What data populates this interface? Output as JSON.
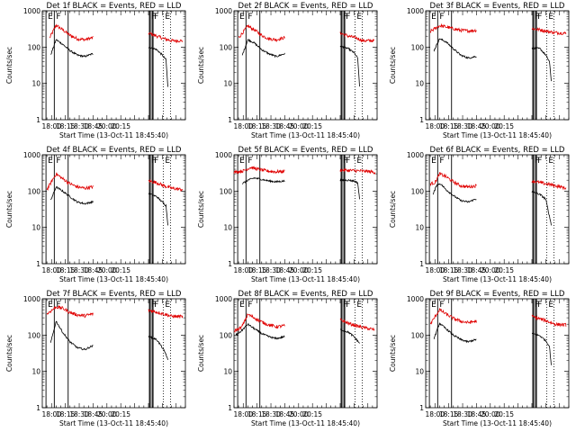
{
  "chart_data": {
    "type": "line",
    "layout": "3x3 grid of panels",
    "shared": {
      "xlabel": "Start Time (13-Oct-11 18:45:40)",
      "ylabel": "Counts/sec",
      "x_ticks": [
        "18:00",
        "18:15",
        "18:30",
        "18:45",
        "20:00",
        "20:15"
      ],
      "xlim": [
        "17:50",
        "20:25"
      ],
      "y_scale": "log",
      "ylim": [
        1,
        1000
      ],
      "y_ticks": [
        "1",
        "10",
        "100",
        "1000"
      ],
      "grid": false,
      "markers": [
        {
          "label": "E",
          "time": "17:54",
          "style": "solid"
        },
        {
          "label": "F",
          "time": "18:03",
          "style": "solid"
        },
        {
          "label": "",
          "time": "18:18",
          "style": "solid"
        },
        {
          "label": "F",
          "time": "19:46",
          "style": "solid"
        },
        {
          "label": "",
          "time": "19:47",
          "style": "solid"
        },
        {
          "label": "F",
          "time": "19:49",
          "style": "solid"
        },
        {
          "label": "",
          "time": "19:50",
          "style": "solid"
        },
        {
          "label": "E",
          "time": "20:01",
          "style": "dotted"
        },
        {
          "label": "",
          "time": "20:09",
          "style": "dotted"
        }
      ],
      "series_colors": {
        "events": "#000000",
        "lld": "#e00000"
      }
    },
    "panels": [
      {
        "title": "Det 1f BLACK = Events, RED = LLD",
        "series": [
          {
            "color": "#e00000",
            "x": [
              "17:58",
              "18:05",
              "18:12",
              "18:20",
              "18:28",
              "18:36",
              "18:44",
              "19:46",
              "19:54",
              "20:02",
              "20:10",
              "20:22"
            ],
            "y": [
              180,
              400,
              300,
              210,
              170,
              160,
              180,
              240,
              200,
              170,
              150,
              150
            ]
          },
          {
            "color": "#000000",
            "x": [
              "17:59",
              "18:05",
              "18:12",
              "18:20",
              "18:28",
              "18:36",
              "18:44",
              "19:46",
              "19:54",
              "20:00",
              "20:04",
              "20:06"
            ],
            "y": [
              60,
              160,
              120,
              80,
              60,
              55,
              65,
              100,
              85,
              60,
              45,
              8
            ]
          }
        ]
      },
      {
        "title": "Det 2f BLACK = Events, RED = LLD",
        "series": [
          {
            "color": "#e00000",
            "x": [
              "17:55",
              "18:05",
              "18:12",
              "18:20",
              "18:28",
              "18:36",
              "18:44",
              "19:46",
              "19:54",
              "20:02",
              "20:10",
              "20:22"
            ],
            "y": [
              180,
              380,
              300,
              210,
              170,
              160,
              180,
              240,
              200,
              180,
              150,
              150
            ]
          },
          {
            "color": "#000000",
            "x": [
              "17:59",
              "18:05",
              "18:12",
              "18:20",
              "18:28",
              "18:36",
              "18:44",
              "19:46",
              "19:54",
              "20:00",
              "20:04",
              "20:06"
            ],
            "y": [
              60,
              160,
              130,
              85,
              65,
              55,
              65,
              105,
              90,
              70,
              50,
              8
            ]
          }
        ]
      },
      {
        "title": "Det 3f BLACK = Events, RED = LLD",
        "series": [
          {
            "color": "#e00000",
            "x": [
              "17:55",
              "18:05",
              "18:12",
              "18:20",
              "18:28",
              "18:36",
              "18:44",
              "19:46",
              "19:54",
              "20:02",
              "20:10",
              "20:22"
            ],
            "y": [
              270,
              390,
              360,
              320,
              290,
              280,
              290,
              320,
              300,
              270,
              250,
              240
            ]
          },
          {
            "color": "#000000",
            "x": [
              "17:59",
              "18:05",
              "18:12",
              "18:20",
              "18:28",
              "18:36",
              "18:44",
              "19:46",
              "19:54",
              "20:00",
              "20:04",
              "20:06"
            ],
            "y": [
              80,
              170,
              140,
              90,
              60,
              50,
              55,
              95,
              90,
              60,
              40,
              12
            ]
          }
        ]
      },
      {
        "title": "Det 4f BLACK = Events, RED = LLD",
        "series": [
          {
            "color": "#e00000",
            "x": [
              "17:55",
              "18:05",
              "18:12",
              "18:20",
              "18:28",
              "18:36",
              "18:44",
              "19:46",
              "19:54",
              "20:02",
              "20:10",
              "20:22"
            ],
            "y": [
              110,
              300,
              220,
              160,
              130,
              120,
              130,
              190,
              170,
              140,
              120,
              110
            ]
          },
          {
            "color": "#000000",
            "x": [
              "17:59",
              "18:05",
              "18:12",
              "18:20",
              "18:28",
              "18:36",
              "18:44",
              "19:46",
              "19:54",
              "20:00",
              "20:04",
              "20:06"
            ],
            "y": [
              55,
              130,
              100,
              70,
              50,
              45,
              50,
              85,
              70,
              50,
              40,
              12
            ]
          }
        ]
      },
      {
        "title": "Det 5f BLACK = Events, RED = LLD",
        "series": [
          {
            "color": "#e00000",
            "x": [
              "17:50",
              "18:00",
              "18:08",
              "18:16",
              "18:25",
              "18:35",
              "18:44",
              "19:46",
              "19:56",
              "20:06",
              "20:15",
              "20:23"
            ],
            "y": [
              330,
              360,
              450,
              400,
              360,
              340,
              350,
              380,
              370,
              360,
              350,
              330
            ]
          },
          {
            "color": "#000000",
            "x": [
              "17:59",
              "18:05",
              "18:12",
              "18:20",
              "18:28",
              "18:36",
              "18:44",
              "19:46",
              "19:54",
              "20:00",
              "20:04",
              "20:06"
            ],
            "y": [
              160,
              200,
              230,
              210,
              190,
              180,
              190,
              200,
              200,
              190,
              170,
              60
            ]
          }
        ]
      },
      {
        "title": "Det 6f BLACK = Events, RED = LLD",
        "series": [
          {
            "color": "#e00000",
            "x": [
              "17:55",
              "18:00",
              "18:05",
              "18:12",
              "18:20",
              "18:28",
              "18:36",
              "18:44",
              "19:46",
              "19:54",
              "20:06",
              "20:22"
            ],
            "y": [
              160,
              170,
              300,
              250,
              180,
              140,
              130,
              140,
              190,
              170,
              150,
              120
            ]
          },
          {
            "color": "#000000",
            "x": [
              "17:58",
              "18:02",
              "18:06",
              "18:12",
              "18:20",
              "18:28",
              "18:36",
              "18:44",
              "19:46",
              "19:54",
              "20:00",
              "20:06"
            ],
            "y": [
              80,
              150,
              160,
              110,
              75,
              55,
              50,
              60,
              95,
              80,
              60,
              12
            ]
          }
        ]
      },
      {
        "title": "Det 7f BLACK = Events, RED = LLD",
        "series": [
          {
            "color": "#e00000",
            "x": [
              "17:55",
              "18:05",
              "18:12",
              "18:20",
              "18:28",
              "18:36",
              "18:44",
              "19:46",
              "19:54",
              "20:02",
              "20:10",
              "20:22"
            ],
            "y": [
              380,
              600,
              550,
              420,
              360,
              340,
              380,
              480,
              430,
              380,
              330,
              320
            ]
          },
          {
            "color": "#000000",
            "x": [
              "17:59",
              "18:05",
              "18:12",
              "18:20",
              "18:28",
              "18:36",
              "18:44",
              "19:46",
              "19:54",
              "20:00",
              "20:04",
              "20:06"
            ],
            "y": [
              60,
              240,
              120,
              65,
              45,
              40,
              50,
              90,
              75,
              45,
              30,
              20
            ]
          }
        ]
      },
      {
        "title": "Det 8f BLACK = Events, RED = LLD",
        "series": [
          {
            "color": "#e00000",
            "x": [
              "17:50",
              "17:58",
              "18:05",
              "18:12",
              "18:20",
              "18:28",
              "18:36",
              "18:44",
              "19:46",
              "19:54",
              "20:06",
              "20:22"
            ],
            "y": [
              130,
              160,
              370,
              300,
              230,
              190,
              170,
              180,
              260,
              210,
              170,
              140
            ]
          },
          {
            "color": "#000000",
            "x": [
              "17:52",
              "17:58",
              "18:05",
              "18:12",
              "18:20",
              "18:28",
              "18:36",
              "18:44",
              "19:46",
              "19:54",
              "20:00",
              "20:06"
            ],
            "y": [
              100,
              130,
              200,
              150,
              110,
              90,
              80,
              90,
              140,
              120,
              90,
              60
            ]
          }
        ]
      },
      {
        "title": "Det 9f BLACK = Events, RED = LLD",
        "series": [
          {
            "color": "#e00000",
            "x": [
              "17:55",
              "18:05",
              "18:12",
              "18:20",
              "18:28",
              "18:36",
              "18:44",
              "19:46",
              "19:54",
              "20:02",
              "20:10",
              "20:22"
            ],
            "y": [
              200,
              500,
              380,
              290,
              240,
              220,
              240,
              320,
              280,
              240,
              200,
              190
            ]
          },
          {
            "color": "#000000",
            "x": [
              "17:59",
              "18:05",
              "18:12",
              "18:20",
              "18:28",
              "18:36",
              "18:44",
              "19:46",
              "19:54",
              "20:00",
              "20:04",
              "20:06"
            ],
            "y": [
              80,
              210,
              150,
              100,
              75,
              65,
              75,
              110,
              95,
              70,
              50,
              15
            ]
          }
        ]
      }
    ]
  }
}
